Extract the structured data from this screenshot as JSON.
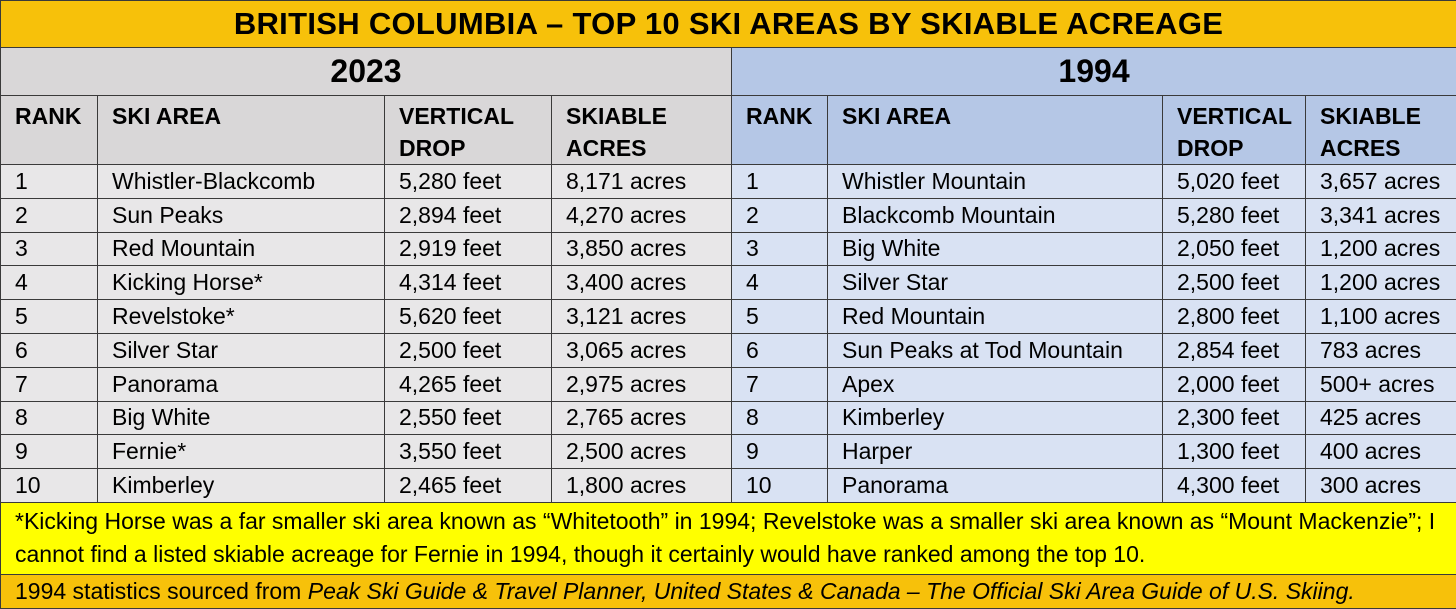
{
  "title": "BRITISH COLUMBIA – TOP 10 SKI AREAS BY SKIABLE ACREAGE",
  "left": {
    "year": "2023",
    "headers": {
      "rank": "RANK",
      "ski_area": "SKI AREA",
      "vertical_drop": "VERTICAL DROP",
      "skiable_acres": "SKIABLE ACRES"
    },
    "rows": [
      {
        "rank": "1",
        "name": "Whistler-Blackcomb",
        "vertical": "5,280 feet",
        "acres": "8,171 acres"
      },
      {
        "rank": "2",
        "name": "Sun Peaks",
        "vertical": "2,894 feet",
        "acres": "4,270 acres"
      },
      {
        "rank": "3",
        "name": "Red Mountain",
        "vertical": "2,919 feet",
        "acres": "3,850 acres"
      },
      {
        "rank": "4",
        "name": "Kicking Horse*",
        "vertical": "4,314 feet",
        "acres": "3,400 acres"
      },
      {
        "rank": "5",
        "name": "Revelstoke*",
        "vertical": "5,620 feet",
        "acres": "3,121 acres"
      },
      {
        "rank": "6",
        "name": "Silver Star",
        "vertical": "2,500 feet",
        "acres": "3,065 acres"
      },
      {
        "rank": "7",
        "name": "Panorama",
        "vertical": "4,265 feet",
        "acres": "2,975 acres"
      },
      {
        "rank": "8",
        "name": "Big White",
        "vertical": "2,550 feet",
        "acres": "2,765 acres"
      },
      {
        "rank": "9",
        "name": "Fernie*",
        "vertical": "3,550 feet",
        "acres": "2,500 acres"
      },
      {
        "rank": "10",
        "name": "Kimberley",
        "vertical": "2,465 feet",
        "acres": "1,800 acres"
      }
    ]
  },
  "right": {
    "year": "1994",
    "headers": {
      "rank": "RANK",
      "ski_area": "SKI AREA",
      "vertical_drop": "VERTICAL DROP",
      "skiable_acres": "SKIABLE ACRES"
    },
    "rows": [
      {
        "rank": "1",
        "name": "Whistler Mountain",
        "vertical": "5,020 feet",
        "acres": "3,657 acres"
      },
      {
        "rank": "2",
        "name": "Blackcomb Mountain",
        "vertical": "5,280 feet",
        "acres": "3,341 acres"
      },
      {
        "rank": "3",
        "name": "Big White",
        "vertical": "2,050 feet",
        "acres": "1,200 acres"
      },
      {
        "rank": "4",
        "name": "Silver Star",
        "vertical": "2,500 feet",
        "acres": "1,200 acres"
      },
      {
        "rank": "5",
        "name": "Red Mountain",
        "vertical": "2,800 feet",
        "acres": "1,100 acres"
      },
      {
        "rank": "6",
        "name": "Sun Peaks at Tod Mountain",
        "vertical": "2,854 feet",
        "acres": "783 acres"
      },
      {
        "rank": "7",
        "name": "Apex",
        "vertical": "2,000 feet",
        "acres": "500+ acres"
      },
      {
        "rank": "8",
        "name": "Kimberley",
        "vertical": "2,300 feet",
        "acres": "425 acres"
      },
      {
        "rank": "9",
        "name": "Harper",
        "vertical": "1,300 feet",
        "acres": "400 acres"
      },
      {
        "rank": "10",
        "name": "Panorama",
        "vertical": "4,300 feet",
        "acres": "300 acres"
      }
    ]
  },
  "footnote": "*Kicking Horse was a far smaller ski area known as “Whitetooth” in 1994; Revelstoke was a smaller ski area known as “Mount Mackenzie”; I cannot find a listed skiable acreage for Fernie in 1994, though it certainly would have ranked among the top 10.",
  "source": {
    "prefix": "1994 statistics sourced from ",
    "book": "Peak Ski Guide & Travel Planner, United States & Canada – The Official Ski Area Guide of U.S. Skiing."
  },
  "colors": {
    "title_bg": "#f7c10a",
    "left_header_bg": "#d9d7d8",
    "left_row_bg": "#e8e7e8",
    "right_header_bg": "#b5c7e6",
    "right_row_bg": "#d9e2f3",
    "footnote_bg": "#ffff00",
    "source_bg": "#f7c10a"
  }
}
